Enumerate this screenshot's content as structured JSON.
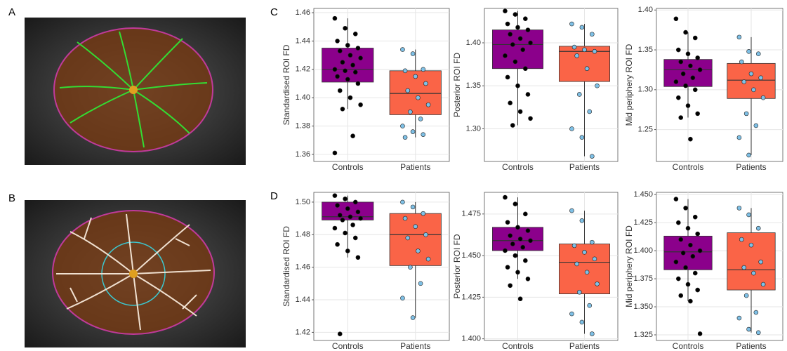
{
  "panel_labels": [
    "A",
    "B",
    "C",
    "D"
  ],
  "chart_data": [
    {
      "type": "box",
      "ylabel": "Standardised ROI FD",
      "categories": [
        "Controls",
        "Patients"
      ],
      "ylim": [
        1.355,
        1.463
      ],
      "yticks": [
        1.36,
        1.38,
        {
          "value": 1.4,
          "label": "1.40"
        },
        1.42,
        1.44,
        1.46
      ],
      "grid": true,
      "series": [
        {
          "color": "#8b008b",
          "point_color": "#000000",
          "whislo": 1.392,
          "q1": 1.411,
          "med": 1.42,
          "q3": 1.435,
          "whishi": 1.456,
          "points": [
            1.456,
            1.449,
            1.445,
            1.44,
            1.437,
            1.435,
            1.433,
            1.43,
            1.428,
            1.425,
            1.423,
            1.42,
            1.419,
            1.418,
            1.415,
            1.413,
            1.41,
            1.405,
            1.4,
            1.395,
            1.392,
            1.373,
            1.361
          ]
        },
        {
          "color": "#fa6447",
          "point_color": "#7ec0e6",
          "whislo": 1.372,
          "q1": 1.388,
          "med": 1.403,
          "q3": 1.419,
          "whishi": 1.434,
          "points": [
            1.434,
            1.431,
            1.42,
            1.419,
            1.415,
            1.41,
            1.405,
            1.4,
            1.395,
            1.39,
            1.385,
            1.38,
            1.376,
            1.374,
            1.372
          ]
        }
      ]
    },
    {
      "type": "box",
      "ylabel": "Posterior ROI FD",
      "categories": [
        "Controls",
        "Patients"
      ],
      "ylim": [
        1.262,
        1.44
      ],
      "yticks": [
        {
          "value": 1.3,
          "label": "1.30"
        },
        1.35,
        {
          "value": 1.4,
          "label": "1.40"
        }
      ],
      "grid": true,
      "series": [
        {
          "color": "#8b008b",
          "point_color": "#000000",
          "whislo": 1.304,
          "q1": 1.37,
          "med": 1.398,
          "q3": 1.415,
          "whishi": 1.437,
          "points": [
            1.437,
            1.433,
            1.428,
            1.422,
            1.418,
            1.415,
            1.41,
            1.405,
            1.4,
            1.398,
            1.392,
            1.385,
            1.378,
            1.37,
            1.36,
            1.35,
            1.34,
            1.33,
            1.32,
            1.312,
            1.304
          ]
        },
        {
          "color": "#fa6447",
          "point_color": "#7ec0e6",
          "whislo": 1.268,
          "q1": 1.355,
          "med": 1.39,
          "q3": 1.396,
          "whishi": 1.422,
          "points": [
            1.422,
            1.418,
            1.41,
            1.395,
            1.392,
            1.39,
            1.385,
            1.37,
            1.35,
            1.34,
            1.32,
            1.3,
            1.29,
            1.268
          ]
        }
      ]
    },
    {
      "type": "box",
      "ylabel": "Mid periphery ROI FD",
      "categories": [
        "Controls",
        "Patients"
      ],
      "ylim": [
        1.21,
        1.402
      ],
      "yticks": [
        1.25,
        {
          "value": 1.3,
          "label": "1.30"
        },
        1.35,
        {
          "value": 1.4,
          "label": "1.40"
        }
      ],
      "grid": true,
      "series": [
        {
          "color": "#8b008b",
          "point_color": "#000000",
          "whislo": 1.265,
          "q1": 1.304,
          "med": 1.325,
          "q3": 1.338,
          "whishi": 1.372,
          "points": [
            1.389,
            1.372,
            1.365,
            1.35,
            1.345,
            1.34,
            1.335,
            1.33,
            1.325,
            1.32,
            1.315,
            1.31,
            1.305,
            1.3,
            1.29,
            1.28,
            1.27,
            1.265,
            1.238
          ]
        },
        {
          "color": "#fa6447",
          "point_color": "#7ec0e6",
          "whislo": 1.218,
          "q1": 1.289,
          "med": 1.312,
          "q3": 1.333,
          "whishi": 1.366,
          "points": [
            1.366,
            1.348,
            1.345,
            1.335,
            1.32,
            1.315,
            1.31,
            1.3,
            1.29,
            1.27,
            1.255,
            1.24,
            1.218
          ]
        }
      ]
    },
    {
      "type": "box",
      "ylabel": "Standardised ROI FD",
      "categories": [
        "Controls",
        "Patients"
      ],
      "ylim": [
        1.415,
        1.506
      ],
      "yticks": [
        1.42,
        1.44,
        1.46,
        1.48,
        {
          "value": 1.5,
          "label": "1.50"
        }
      ],
      "grid": true,
      "series": [
        {
          "color": "#8b008b",
          "point_color": "#000000",
          "whislo": 1.466,
          "q1": 1.489,
          "med": 1.491,
          "q3": 1.5,
          "whishi": 1.504,
          "points": [
            1.504,
            1.502,
            1.5,
            1.498,
            1.496,
            1.494,
            1.492,
            1.491,
            1.49,
            1.489,
            1.486,
            1.484,
            1.481,
            1.478,
            1.474,
            1.47,
            1.466,
            1.419
          ]
        },
        {
          "color": "#fa6447",
          "point_color": "#7ec0e6",
          "whislo": 1.429,
          "q1": 1.461,
          "med": 1.48,
          "q3": 1.493,
          "whishi": 1.5,
          "points": [
            1.5,
            1.497,
            1.493,
            1.49,
            1.485,
            1.48,
            1.478,
            1.47,
            1.465,
            1.46,
            1.45,
            1.441,
            1.429
          ]
        }
      ]
    },
    {
      "type": "box",
      "ylabel": "Posterior ROI FD",
      "categories": [
        "Controls",
        "Patients"
      ],
      "ylim": [
        1.399,
        1.488
      ],
      "yticks": [
        {
          "value": 1.4,
          "label": "1.400"
        },
        1.425,
        {
          "value": 1.45,
          "label": "1.450"
        },
        1.475
      ],
      "grid": true,
      "series": [
        {
          "color": "#8b008b",
          "point_color": "#000000",
          "whislo": 1.436,
          "q1": 1.453,
          "med": 1.459,
          "q3": 1.467,
          "whishi": 1.485,
          "points": [
            1.485,
            1.481,
            1.475,
            1.47,
            1.467,
            1.465,
            1.462,
            1.46,
            1.459,
            1.457,
            1.455,
            1.453,
            1.45,
            1.447,
            1.443,
            1.44,
            1.436,
            1.432,
            1.424
          ]
        },
        {
          "color": "#fa6447",
          "point_color": "#7ec0e6",
          "whislo": 1.403,
          "q1": 1.427,
          "med": 1.446,
          "q3": 1.457,
          "whishi": 1.477,
          "points": [
            1.477,
            1.471,
            1.458,
            1.456,
            1.452,
            1.448,
            1.445,
            1.44,
            1.433,
            1.428,
            1.42,
            1.415,
            1.41,
            1.403
          ]
        }
      ]
    },
    {
      "type": "box",
      "ylabel": "Mid periphery ROI FD",
      "categories": [
        "Controls",
        "Patients"
      ],
      "ylim": [
        1.32,
        1.452
      ],
      "yticks": [
        1.325,
        {
          "value": 1.35,
          "label": "1.350"
        },
        1.375,
        {
          "value": 1.4,
          "label": "1.400"
        },
        1.425,
        {
          "value": 1.45,
          "label": "1.450"
        }
      ],
      "grid": true,
      "series": [
        {
          "color": "#8b008b",
          "point_color": "#000000",
          "whislo": 1.355,
          "q1": 1.383,
          "med": 1.399,
          "q3": 1.413,
          "whishi": 1.446,
          "points": [
            1.446,
            1.438,
            1.43,
            1.425,
            1.42,
            1.415,
            1.41,
            1.405,
            1.4,
            1.398,
            1.395,
            1.39,
            1.385,
            1.38,
            1.375,
            1.37,
            1.365,
            1.36,
            1.355,
            1.326
          ]
        },
        {
          "color": "#fa6447",
          "point_color": "#7ec0e6",
          "whislo": 1.327,
          "q1": 1.365,
          "med": 1.383,
          "q3": 1.416,
          "whishi": 1.438,
          "points": [
            1.438,
            1.432,
            1.42,
            1.41,
            1.405,
            1.39,
            1.385,
            1.38,
            1.37,
            1.36,
            1.345,
            1.34,
            1.33,
            1.327
          ]
        }
      ]
    }
  ]
}
